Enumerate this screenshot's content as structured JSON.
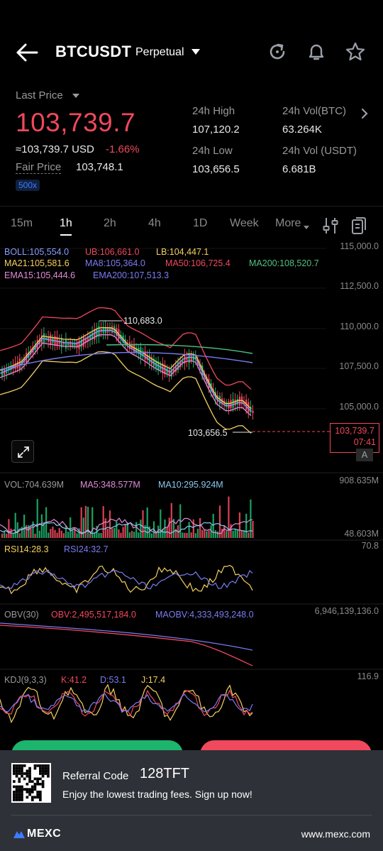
{
  "header": {
    "symbol": "BTCUSDT",
    "contract_type": "Perpetual"
  },
  "price": {
    "last_price_label": "Last Price",
    "last_price": "103,739.7",
    "usd_price": "≈103,739.7 USD",
    "change_pct": "-1.66%",
    "fair_price_label": "Fair Price",
    "fair_price": "103,748.1",
    "leverage": "500x"
  },
  "stats": {
    "high_label": "24h High",
    "high": "107,120.2",
    "vol_btc_label": "24h Vol(BTC)",
    "vol_btc": "63.264K",
    "low_label": "24h Low",
    "low": "103,656.5",
    "vol_usdt_label": "24h Vol (USDT)",
    "vol_usdt": "6.681B"
  },
  "tabs": [
    "15m",
    "1h",
    "2h",
    "4h",
    "1D",
    "Week",
    "More"
  ],
  "active_tab": "1h",
  "indicators": {
    "boll": "BOLL:105,554.0",
    "ub": "UB:106,661.0",
    "lb": "LB:104,447.1",
    "ma21": "MA21:105,581.6",
    "ma8": "MA8:105,364.0",
    "ma50": "MA50:106,725.4",
    "ma200": "MA200:108,520.7",
    "ema15": "EMA15:105,444.6",
    "ema200": "EMA200:107,513.3",
    "vol": "VOL:704.639M",
    "vol_ma5": "MA5:348.577M",
    "vol_ma10": "MA10:295.924M",
    "rsi14": "RSI14:28.3",
    "rsi24": "RSI24:32.7",
    "obv": "OBV(30)",
    "obv_val": "OBV:2,495,517,184.0",
    "maobv": "MAOBV:4,333,493,248.0",
    "kdj": "KDJ(9,3,3)",
    "k": "K:41.2",
    "d": "D:53.1",
    "j": "J:17.4"
  },
  "axis": {
    "p115": "115,000.0",
    "p112": "112,500.0",
    "p110": "110,000.0",
    "p107": "107,500.0",
    "p105": "105,000.0",
    "vol_max": "908.635M",
    "vol_min": "48.603M",
    "rsi_max": "70.8",
    "obv_max": "6,946,139,136.0",
    "kdj_max": "116.9"
  },
  "chart_marks": {
    "high_mark": "110,683.0",
    "low_mark": "103,656.5",
    "current_price": "103,739.7",
    "countdown": "07:41",
    "auto_label": "A"
  },
  "referral": {
    "label": "Referral Code",
    "code": "128TFT",
    "subtitle": "Enjoy the lowest trading fees. Sign up now!",
    "brand": "MEXC",
    "site": "www.mexc.com"
  },
  "colors": {
    "up": "#1db46d",
    "down": "#f0485d",
    "boll": "#8a9eff",
    "ub": "#f0485d",
    "lb": "#f5d060",
    "ma21": "#f5d060",
    "ma8": "#7a7cf0",
    "ma50": "#f0485d",
    "ma200": "#4fc17e",
    "ema15": "#e38ad8",
    "ema200": "#7a7cf0"
  }
}
